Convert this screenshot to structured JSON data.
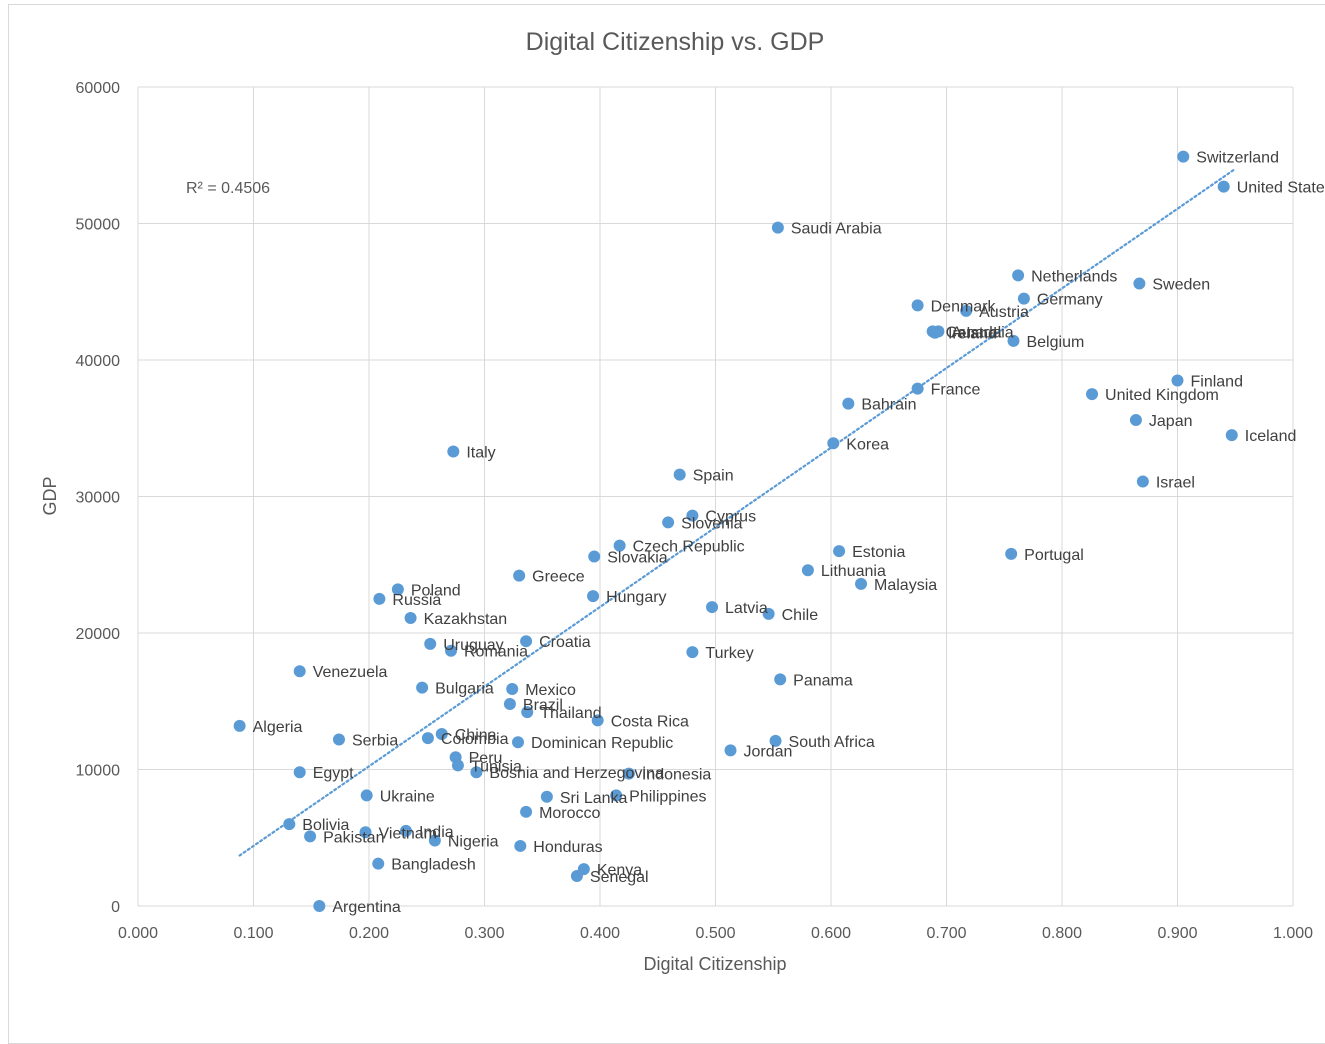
{
  "chart_data": {
    "type": "scatter",
    "title": "Digital Citizenship vs. GDP",
    "xlabel": "Digital Citizenship",
    "ylabel": "GDP",
    "xlim": [
      0,
      1
    ],
    "ylim": [
      0,
      60000
    ],
    "x_ticks": [
      "0.000",
      "0.100",
      "0.200",
      "0.300",
      "0.400",
      "0.500",
      "0.600",
      "0.700",
      "0.800",
      "0.900",
      "1.000"
    ],
    "y_ticks": [
      "0",
      "10000",
      "20000",
      "30000",
      "40000",
      "50000",
      "60000"
    ],
    "grid": true,
    "legend": "none",
    "marker_color": "#5b9bd5",
    "trendline": {
      "type": "linear",
      "style": "dotted",
      "color": "#5b9bd5",
      "x_start": 0.088,
      "x_end": 0.95,
      "y_start": 3700,
      "y_end": 54000,
      "r2_text": "R² = 0.4506"
    },
    "points": [
      {
        "label": "Switzerland",
        "x": 0.905,
        "y": 54900
      },
      {
        "label": "United States",
        "x": 0.94,
        "y": 52700
      },
      {
        "label": "Saudi Arabia",
        "x": 0.554,
        "y": 49700
      },
      {
        "label": "Netherlands",
        "x": 0.762,
        "y": 46200
      },
      {
        "label": "Sweden",
        "x": 0.867,
        "y": 45600
      },
      {
        "label": "Germany",
        "x": 0.767,
        "y": 44500
      },
      {
        "label": "Denmark",
        "x": 0.675,
        "y": 44000
      },
      {
        "label": "Austria",
        "x": 0.717,
        "y": 43600
      },
      {
        "label": "Australia",
        "x": 0.693,
        "y": 42100
      },
      {
        "label": "Canada",
        "x": 0.688,
        "y": 42100
      },
      {
        "label": "Ireland",
        "x": 0.69,
        "y": 42000
      },
      {
        "label": "Belgium",
        "x": 0.758,
        "y": 41400
      },
      {
        "label": "Finland",
        "x": 0.9,
        "y": 38500
      },
      {
        "label": "France",
        "x": 0.675,
        "y": 37900
      },
      {
        "label": "United Kingdom",
        "x": 0.826,
        "y": 37500
      },
      {
        "label": "Bahrain",
        "x": 0.615,
        "y": 36800
      },
      {
        "label": "Japan",
        "x": 0.864,
        "y": 35600
      },
      {
        "label": "Iceland",
        "x": 0.947,
        "y": 34500
      },
      {
        "label": "Korea",
        "x": 0.602,
        "y": 33900
      },
      {
        "label": "Italy",
        "x": 0.273,
        "y": 33300
      },
      {
        "label": "Spain",
        "x": 0.469,
        "y": 31600
      },
      {
        "label": "Israel",
        "x": 0.87,
        "y": 31100
      },
      {
        "label": "Cyprus",
        "x": 0.48,
        "y": 28600
      },
      {
        "label": "Slovenia",
        "x": 0.459,
        "y": 28100
      },
      {
        "label": "Czech Republic",
        "x": 0.417,
        "y": 26400
      },
      {
        "label": "Estonia",
        "x": 0.607,
        "y": 26000
      },
      {
        "label": "Portugal",
        "x": 0.756,
        "y": 25800
      },
      {
        "label": "Slovakia",
        "x": 0.395,
        "y": 25600
      },
      {
        "label": "Lithuania",
        "x": 0.58,
        "y": 24600
      },
      {
        "label": "Greece",
        "x": 0.33,
        "y": 24200
      },
      {
        "label": "Malaysia",
        "x": 0.626,
        "y": 23600
      },
      {
        "label": "Poland",
        "x": 0.225,
        "y": 23200
      },
      {
        "label": "Hungary",
        "x": 0.394,
        "y": 22700
      },
      {
        "label": "Russia",
        "x": 0.209,
        "y": 22500
      },
      {
        "label": "Latvia",
        "x": 0.497,
        "y": 21900
      },
      {
        "label": "Chile",
        "x": 0.546,
        "y": 21400
      },
      {
        "label": "Kazakhstan",
        "x": 0.236,
        "y": 21100
      },
      {
        "label": "Croatia",
        "x": 0.336,
        "y": 19400
      },
      {
        "label": "Uruguay",
        "x": 0.253,
        "y": 19200
      },
      {
        "label": "Romania",
        "x": 0.271,
        "y": 18700
      },
      {
        "label": "Turkey",
        "x": 0.48,
        "y": 18600
      },
      {
        "label": "Venezuela",
        "x": 0.14,
        "y": 17200
      },
      {
        "label": "Panama",
        "x": 0.556,
        "y": 16600
      },
      {
        "label": "Bulgaria",
        "x": 0.246,
        "y": 16000
      },
      {
        "label": "Mexico",
        "x": 0.324,
        "y": 15900
      },
      {
        "label": "Brazil",
        "x": 0.322,
        "y": 14800
      },
      {
        "label": "Thailand",
        "x": 0.337,
        "y": 14200
      },
      {
        "label": "Costa Rica",
        "x": 0.398,
        "y": 13600
      },
      {
        "label": "Algeria",
        "x": 0.088,
        "y": 13200
      },
      {
        "label": "China",
        "x": 0.263,
        "y": 12600
      },
      {
        "label": "Colombia",
        "x": 0.251,
        "y": 12300
      },
      {
        "label": "Serbia",
        "x": 0.174,
        "y": 12200
      },
      {
        "label": "South Africa",
        "x": 0.552,
        "y": 12100
      },
      {
        "label": "Dominican Republic",
        "x": 0.329,
        "y": 12000
      },
      {
        "label": "Jordan",
        "x": 0.513,
        "y": 11400
      },
      {
        "label": "Peru",
        "x": 0.275,
        "y": 10900
      },
      {
        "label": "Tunisia",
        "x": 0.277,
        "y": 10300
      },
      {
        "label": "Egypt",
        "x": 0.14,
        "y": 9800
      },
      {
        "label": "Bosnia and Herzegovina",
        "x": 0.293,
        "y": 9800
      },
      {
        "label": "Indonesia",
        "x": 0.425,
        "y": 9700
      },
      {
        "label": "Ukraine",
        "x": 0.198,
        "y": 8100
      },
      {
        "label": "Philippines",
        "x": 0.414,
        "y": 8100
      },
      {
        "label": "Sri Lanka",
        "x": 0.354,
        "y": 8000
      },
      {
        "label": "Morocco",
        "x": 0.336,
        "y": 6900
      },
      {
        "label": "Bolivia",
        "x": 0.131,
        "y": 6000
      },
      {
        "label": "India",
        "x": 0.232,
        "y": 5500
      },
      {
        "label": "Vietnam",
        "x": 0.197,
        "y": 5400
      },
      {
        "label": "Nigeria",
        "x": 0.257,
        "y": 4800
      },
      {
        "label": "Pakistan",
        "x": 0.149,
        "y": 5100
      },
      {
        "label": "Honduras",
        "x": 0.331,
        "y": 4400
      },
      {
        "label": "Bangladesh",
        "x": 0.208,
        "y": 3100
      },
      {
        "label": "Kenya",
        "x": 0.386,
        "y": 2700
      },
      {
        "label": "Senegal",
        "x": 0.38,
        "y": 2200
      },
      {
        "label": "Argentina",
        "x": 0.157,
        "y": 0
      }
    ]
  }
}
